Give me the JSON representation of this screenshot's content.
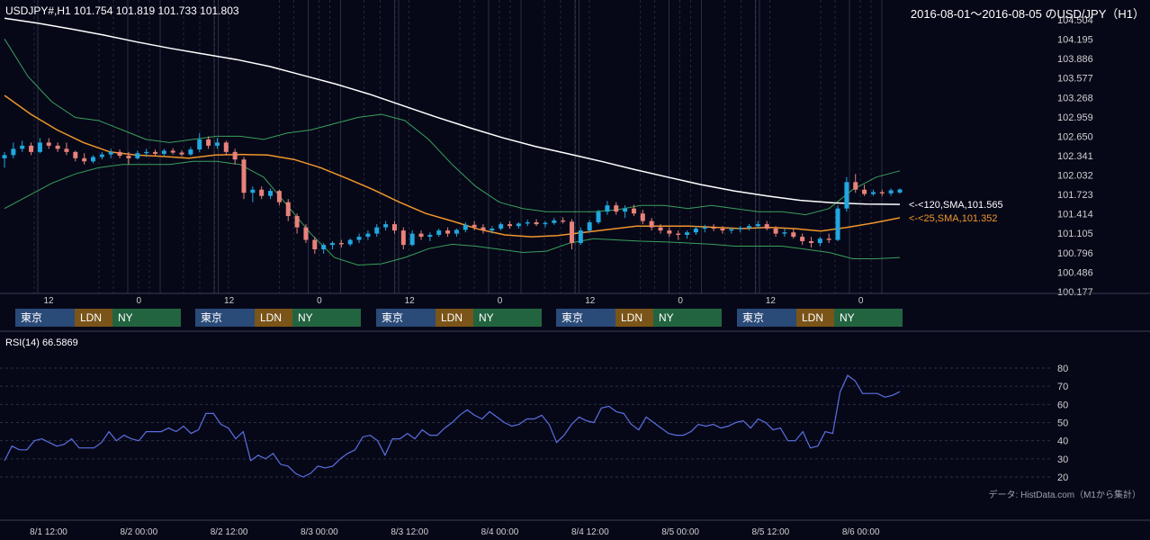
{
  "header": {
    "ohlc": "USDJPY#,H1 101.754 101.819 101.733 101.803",
    "range": "2016-08-01～2016-08-05 のUSD/JPY（H1）"
  },
  "chart_data": [
    {
      "type": "candlestick",
      "title": "",
      "yticks": [
        "104.504",
        "104.195",
        "103.886",
        "103.577",
        "103.268",
        "102.959",
        "102.650",
        "102.341",
        "102.032",
        "101.723",
        "101.414",
        "101.105",
        "100.796",
        "100.486",
        "100.177"
      ],
      "ylim": [
        100.177,
        104.504
      ],
      "xticks": [
        "12",
        "0",
        "12",
        "0",
        "12",
        "0",
        "12",
        "0",
        "12",
        "0"
      ],
      "series": [
        {
          "name": "120,SMA",
          "color": "#ffffff",
          "last": 101.565,
          "values": [
            104.53,
            104.45,
            104.36,
            104.26,
            104.15,
            104.05,
            103.96,
            103.87,
            103.76,
            103.62,
            103.48,
            103.32,
            103.14,
            102.96,
            102.79,
            102.63,
            102.49,
            102.37,
            102.25,
            102.12,
            102.0,
            101.88,
            101.78,
            101.7,
            101.63,
            101.59,
            101.57,
            101.565
          ]
        },
        {
          "name": "25,SMA",
          "color": "#f0962a",
          "last": 101.352,
          "values": [
            103.3,
            103.0,
            102.75,
            102.55,
            102.4,
            102.35,
            102.33,
            102.3,
            102.35,
            102.36,
            102.35,
            102.28,
            102.15,
            101.98,
            101.8,
            101.6,
            101.42,
            101.3,
            101.17,
            101.08,
            101.05,
            101.07,
            101.12,
            101.17,
            101.22,
            101.22,
            101.22,
            101.2,
            101.18,
            101.2,
            101.18,
            101.14,
            101.2,
            101.27,
            101.352
          ]
        }
      ],
      "bands": {
        "color": "#3aa05a",
        "upper": [
          104.2,
          103.6,
          103.2,
          102.95,
          102.9,
          102.75,
          102.6,
          102.55,
          102.6,
          102.65,
          102.65,
          102.6,
          102.7,
          102.75,
          102.85,
          102.95,
          103.0,
          102.9,
          102.6,
          102.2,
          101.85,
          101.6,
          101.5,
          101.45,
          101.45,
          101.45,
          101.48,
          101.55,
          101.55,
          101.5,
          101.55,
          101.5,
          101.45,
          101.45,
          101.4,
          101.5,
          101.8,
          102.0,
          102.1
        ],
        "lower": [
          101.5,
          101.7,
          101.9,
          102.05,
          102.15,
          102.2,
          102.2,
          102.2,
          102.25,
          102.25,
          102.2,
          102.0,
          101.55,
          101.1,
          100.72,
          100.6,
          100.62,
          100.72,
          100.86,
          100.93,
          100.9,
          100.85,
          100.8,
          100.82,
          100.95,
          101.02,
          101.0,
          100.98,
          100.97,
          100.95,
          100.93,
          100.9,
          100.9,
          100.9,
          100.85,
          100.8,
          100.7,
          100.7,
          100.72
        ]
      },
      "annotations": [
        "<-<120,SMA,101.565",
        "<-<25,SMA,101.352"
      ],
      "candles": [
        [
          102.3,
          102.4,
          102.15,
          102.35
        ],
        [
          102.35,
          102.55,
          102.3,
          102.45
        ],
        [
          102.45,
          102.58,
          102.4,
          102.5
        ],
        [
          102.5,
          102.55,
          102.35,
          102.4
        ],
        [
          102.4,
          102.62,
          102.38,
          102.55
        ],
        [
          102.55,
          102.62,
          102.45,
          102.5
        ],
        [
          102.5,
          102.55,
          102.4,
          102.45
        ],
        [
          102.45,
          102.55,
          102.35,
          102.4
        ],
        [
          102.4,
          102.42,
          102.25,
          102.3
        ],
        [
          102.3,
          102.38,
          102.2,
          102.25
        ],
        [
          102.25,
          102.35,
          102.22,
          102.32
        ],
        [
          102.32,
          102.4,
          102.28,
          102.36
        ],
        [
          102.36,
          102.45,
          102.3,
          102.4
        ],
        [
          102.4,
          102.44,
          102.3,
          102.34
        ],
        [
          102.34,
          102.4,
          102.2,
          102.3
        ],
        [
          102.3,
          102.42,
          102.28,
          102.38
        ],
        [
          102.38,
          102.45,
          102.32,
          102.4
        ],
        [
          102.4,
          102.44,
          102.34,
          102.37
        ],
        [
          102.37,
          102.45,
          102.34,
          102.42
        ],
        [
          102.42,
          102.46,
          102.36,
          102.39
        ],
        [
          102.39,
          102.43,
          102.33,
          102.36
        ],
        [
          102.36,
          102.48,
          102.34,
          102.44
        ],
        [
          102.44,
          102.7,
          102.4,
          102.6
        ],
        [
          102.6,
          102.65,
          102.45,
          102.5
        ],
        [
          102.5,
          102.62,
          102.45,
          102.55
        ],
        [
          102.55,
          102.58,
          102.35,
          102.4
        ],
        [
          102.4,
          102.45,
          102.2,
          102.28
        ],
        [
          102.28,
          102.32,
          101.65,
          101.75
        ],
        [
          101.75,
          101.85,
          101.6,
          101.8
        ],
        [
          101.8,
          101.85,
          101.65,
          101.7
        ],
        [
          101.7,
          101.82,
          101.65,
          101.78
        ],
        [
          101.78,
          101.8,
          101.55,
          101.6
        ],
        [
          101.6,
          101.65,
          101.3,
          101.38
        ],
        [
          101.38,
          101.42,
          101.1,
          101.2
        ],
        [
          101.2,
          101.25,
          100.95,
          101.0
        ],
        [
          101.0,
          101.05,
          100.78,
          100.85
        ],
        [
          100.85,
          100.95,
          100.78,
          100.92
        ],
        [
          100.92,
          100.98,
          100.85,
          100.95
        ],
        [
          100.95,
          101.0,
          100.88,
          100.93
        ],
        [
          100.93,
          101.02,
          100.9,
          101.0
        ],
        [
          101.0,
          101.1,
          100.95,
          101.05
        ],
        [
          101.05,
          101.15,
          101.0,
          101.1
        ],
        [
          101.1,
          101.25,
          101.05,
          101.2
        ],
        [
          101.2,
          101.3,
          101.15,
          101.25
        ],
        [
          101.25,
          101.3,
          101.1,
          101.15
        ],
        [
          101.15,
          101.2,
          100.85,
          100.92
        ],
        [
          100.92,
          101.15,
          100.9,
          101.1
        ],
        [
          101.1,
          101.15,
          101.0,
          101.05
        ],
        [
          101.05,
          101.12,
          100.98,
          101.08
        ],
        [
          101.08,
          101.18,
          101.05,
          101.15
        ],
        [
          101.15,
          101.2,
          101.05,
          101.1
        ],
        [
          101.1,
          101.18,
          101.05,
          101.16
        ],
        [
          101.16,
          101.28,
          101.12,
          101.24
        ],
        [
          101.24,
          101.3,
          101.15,
          101.2
        ],
        [
          101.2,
          101.25,
          101.1,
          101.15
        ],
        [
          101.15,
          101.22,
          101.1,
          101.18
        ],
        [
          101.18,
          101.28,
          101.15,
          101.25
        ],
        [
          101.25,
          101.3,
          101.18,
          101.22
        ],
        [
          101.22,
          101.28,
          101.18,
          101.26
        ],
        [
          101.26,
          101.32,
          101.22,
          101.28
        ],
        [
          101.28,
          101.33,
          101.22,
          101.25
        ],
        [
          101.25,
          101.3,
          101.2,
          101.27
        ],
        [
          101.27,
          101.35,
          101.24,
          101.31
        ],
        [
          101.31,
          101.36,
          101.26,
          101.29
        ],
        [
          101.29,
          101.33,
          100.85,
          100.95
        ],
        [
          100.95,
          101.2,
          100.92,
          101.15
        ],
        [
          101.15,
          101.32,
          101.12,
          101.28
        ],
        [
          101.28,
          101.48,
          101.25,
          101.45
        ],
        [
          101.45,
          101.62,
          101.4,
          101.55
        ],
        [
          101.55,
          101.6,
          101.4,
          101.45
        ],
        [
          101.45,
          101.55,
          101.35,
          101.5
        ],
        [
          101.5,
          101.56,
          101.38,
          101.42
        ],
        [
          101.42,
          101.48,
          101.25,
          101.3
        ],
        [
          101.3,
          101.35,
          101.15,
          101.2
        ],
        [
          101.2,
          101.25,
          101.1,
          101.15
        ],
        [
          101.15,
          101.2,
          101.05,
          101.1
        ],
        [
          101.1,
          101.15,
          101.0,
          101.08
        ],
        [
          101.08,
          101.15,
          101.02,
          101.12
        ],
        [
          101.12,
          101.22,
          101.08,
          101.18
        ],
        [
          101.18,
          101.24,
          101.12,
          101.2
        ],
        [
          101.2,
          101.25,
          101.14,
          101.18
        ],
        [
          101.18,
          101.22,
          101.1,
          101.15
        ],
        [
          101.15,
          101.2,
          101.1,
          101.17
        ],
        [
          101.17,
          101.22,
          101.12,
          101.19
        ],
        [
          101.19,
          101.25,
          101.15,
          101.22
        ],
        [
          101.22,
          101.3,
          101.18,
          101.25
        ],
        [
          101.25,
          101.3,
          101.15,
          101.18
        ],
        [
          101.18,
          101.22,
          101.05,
          101.1
        ],
        [
          101.1,
          101.18,
          101.05,
          101.12
        ],
        [
          101.12,
          101.18,
          101.02,
          101.05
        ],
        [
          101.05,
          101.1,
          100.92,
          100.98
        ],
        [
          100.98,
          101.05,
          100.88,
          100.95
        ],
        [
          100.95,
          101.05,
          100.9,
          101.02
        ],
        [
          101.02,
          101.1,
          100.95,
          101.0
        ],
        [
          101.0,
          101.55,
          100.98,
          101.5
        ],
        [
          101.5,
          102.0,
          101.45,
          101.92
        ],
        [
          101.92,
          102.05,
          101.75,
          101.8
        ],
        [
          101.8,
          101.88,
          101.7,
          101.73
        ],
        [
          101.73,
          101.8,
          101.7,
          101.76
        ],
        [
          101.76,
          101.8,
          101.7,
          101.74
        ],
        [
          101.74,
          101.82,
          101.7,
          101.79
        ],
        [
          101.754,
          101.819,
          101.733,
          101.803
        ]
      ]
    },
    {
      "type": "line",
      "title": "RSI(14) 66.5869",
      "yticks": [
        "80",
        "70",
        "60",
        "50",
        "40",
        "30",
        "20"
      ],
      "ylim": [
        20,
        80
      ],
      "series": [
        {
          "name": "RSI(14)",
          "color": "#5b6fe0",
          "values": [
            29,
            37,
            35,
            35,
            40,
            41,
            39,
            37,
            38,
            41,
            36,
            36,
            36,
            39,
            45,
            40,
            43,
            41,
            40,
            45,
            45,
            45,
            47,
            45,
            48,
            44,
            46,
            55,
            55,
            49,
            47,
            41,
            45,
            29,
            32,
            30,
            33,
            27,
            26,
            22,
            20,
            22,
            26,
            25,
            26,
            30,
            33,
            35,
            42,
            43,
            40,
            32,
            41,
            41,
            44,
            41,
            46,
            43,
            43,
            47,
            50,
            54,
            57,
            54,
            52,
            56,
            53,
            50,
            48,
            49,
            52,
            52,
            54,
            49,
            39,
            43,
            49,
            53,
            51,
            50,
            58,
            59,
            56,
            55,
            49,
            46,
            53,
            50,
            47,
            44,
            43,
            43,
            45,
            49,
            48,
            49,
            47,
            48,
            50,
            51,
            47,
            52,
            50,
            46,
            47,
            40,
            40,
            45,
            36,
            37,
            45,
            44,
            67,
            76,
            73,
            66,
            66,
            66,
            64,
            65,
            67
          ]
        }
      ]
    }
  ],
  "sessions": [
    {
      "tokyo": "東京",
      "london": "LDN",
      "ny": "NY"
    },
    {
      "tokyo": "東京",
      "london": "LDN",
      "ny": "NY"
    },
    {
      "tokyo": "東京",
      "london": "LDN",
      "ny": "NY"
    },
    {
      "tokyo": "東京",
      "london": "LDN",
      "ny": "NY"
    },
    {
      "tokyo": "東京",
      "london": "LDN",
      "ny": "NY"
    }
  ],
  "bottom_axis": [
    "8/1 12:00",
    "8/2 00:00",
    "8/2 12:00",
    "8/3 00:00",
    "8/3 12:00",
    "8/4 00:00",
    "8/4 12:00",
    "8/5 00:00",
    "8/5 12:00",
    "8/6 00:00"
  ],
  "footer": {
    "credit": "データ: HistData.com（M1から集計）"
  },
  "colors": {
    "background": "#060818",
    "bull": "#22a7e0",
    "bear": "#e8827a",
    "rsi": "#5b6fe0",
    "grid": "#3a3f55"
  }
}
